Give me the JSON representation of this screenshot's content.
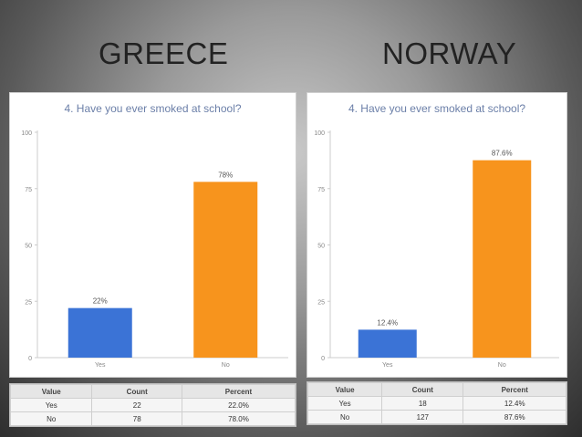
{
  "headings": {
    "left": "GREECE",
    "right": "NORWAY"
  },
  "chart_data": [
    {
      "type": "bar",
      "title": "4. Have you ever smoked at school?",
      "categories": [
        "Yes",
        "No"
      ],
      "values": [
        22,
        78
      ],
      "data_labels": [
        "22%",
        "78%"
      ],
      "colors": [
        "#3b73d6",
        "#f7941d"
      ],
      "yticks": [
        "0",
        "25",
        "50",
        "75",
        "100"
      ],
      "ylim": [
        0,
        100
      ],
      "grid": false,
      "table": {
        "headers": [
          "Value",
          "Count",
          "Percent"
        ],
        "rows": [
          [
            "Yes",
            "22",
            "22.0%"
          ],
          [
            "No",
            "78",
            "78.0%"
          ]
        ]
      }
    },
    {
      "type": "bar",
      "title": "4. Have you ever smoked at school?",
      "categories": [
        "Yes",
        "No"
      ],
      "values": [
        12.4,
        87.6
      ],
      "data_labels": [
        "12.4%",
        "87.6%"
      ],
      "colors": [
        "#3b73d6",
        "#f7941d"
      ],
      "yticks": [
        "0",
        "25",
        "50",
        "75",
        "100"
      ],
      "ylim": [
        0,
        100
      ],
      "grid": false,
      "table": {
        "headers": [
          "Value",
          "Count",
          "Percent"
        ],
        "rows": [
          [
            "Yes",
            "18",
            "12.4%"
          ],
          [
            "No",
            "127",
            "87.6%"
          ]
        ]
      }
    }
  ]
}
